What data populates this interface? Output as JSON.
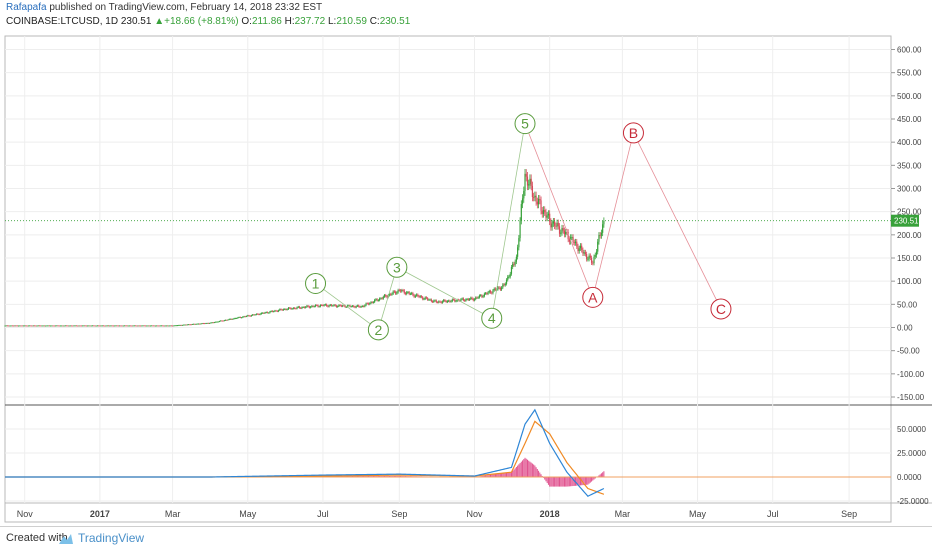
{
  "header": {
    "author": "Rafapafa",
    "published_text": "published on TradingView.com, February 14, 2018 23:32 EST",
    "symbol": "COINBASE:LTCUSD, 1D",
    "last": "230.51",
    "change_arrow": "▲",
    "change": "+18.66 (+8.81%)",
    "o_label": "O:",
    "o_value": "211.86",
    "h_label": "H:",
    "h_value": "237.72",
    "l_label": "L:",
    "l_value": "210.59",
    "c_label": "C:",
    "c_value": "230.51"
  },
  "footer": {
    "created_with": "Created with",
    "brand": "TradingView"
  },
  "colors": {
    "up": "#38a13a",
    "down": "#d64b5b",
    "wave_green": "#5a9c3e",
    "wave_red": "#c62b38",
    "macd_line": "#2e86d6",
    "signal_line": "#f08a24",
    "histogram": "#e0508d"
  },
  "price_axis_labels": [
    "600.00",
    "550.00",
    "500.00",
    "450.00",
    "400.00",
    "350.00",
    "300.00",
    "250.00",
    "200.00",
    "150.00",
    "100.00",
    "50.00",
    "0.00",
    "-50.00",
    "-100.00",
    "-150.00"
  ],
  "macd_axis_labels": [
    "50.0000",
    "25.0000",
    "0.0000",
    "-25.0000"
  ],
  "time_axis_labels": [
    "Nov",
    "2017",
    "Mar",
    "May",
    "Jul",
    "Sep",
    "Nov",
    "2018",
    "Mar",
    "May",
    "Jul",
    "Sep"
  ],
  "chart_data": [
    {
      "type": "line",
      "name": "price",
      "x": [
        "2016-11-01",
        "2016-12-01",
        "2017-01-01",
        "2017-02-01",
        "2017-03-01",
        "2017-04-01",
        "2017-05-01",
        "2017-06-01",
        "2017-07-01",
        "2017-08-01",
        "2017-09-01",
        "2017-10-01",
        "2017-11-01",
        "2017-11-25",
        "2017-12-05",
        "2017-12-12",
        "2017-12-20",
        "2018-01-01",
        "2018-01-15",
        "2018-02-05",
        "2018-02-14"
      ],
      "values": [
        4,
        4,
        4,
        4,
        4,
        10,
        25,
        40,
        48,
        45,
        80,
        55,
        62,
        90,
        150,
        330,
        280,
        230,
        200,
        140,
        230.51
      ],
      "ylim": [
        -160,
        620
      ],
      "last_price": 230.51,
      "wave_labels": [
        {
          "label": "1",
          "date": "2017-06-25",
          "value": 95,
          "color": "green"
        },
        {
          "label": "2",
          "date": "2017-08-15",
          "value": -5,
          "color": "green"
        },
        {
          "label": "3",
          "date": "2017-08-30",
          "value": 130,
          "color": "green"
        },
        {
          "label": "4",
          "date": "2017-11-15",
          "value": 20,
          "color": "green"
        },
        {
          "label": "5",
          "date": "2017-12-12",
          "value": 440,
          "color": "green"
        },
        {
          "label": "A",
          "date": "2018-02-05",
          "value": 65,
          "color": "red"
        },
        {
          "label": "B",
          "date": "2018-03-10",
          "value": 420,
          "color": "red"
        },
        {
          "label": "C",
          "date": "2018-05-20",
          "value": 40,
          "color": "red"
        }
      ]
    },
    {
      "type": "line",
      "name": "macd",
      "x": [
        "2016-11-01",
        "2017-04-01",
        "2017-07-01",
        "2017-09-01",
        "2017-11-01",
        "2017-12-01",
        "2017-12-12",
        "2017-12-20",
        "2018-01-01",
        "2018-01-15",
        "2018-02-01",
        "2018-02-14"
      ],
      "series": [
        {
          "values": [
            0,
            0,
            2,
            3,
            1,
            10,
            55,
            70,
            35,
            5,
            -20,
            -12
          ]
        },
        {
          "values": [
            0,
            0,
            1,
            2,
            1,
            5,
            35,
            58,
            45,
            15,
            -12,
            -18
          ]
        }
      ],
      "ylim": [
        -30,
        70
      ]
    }
  ]
}
